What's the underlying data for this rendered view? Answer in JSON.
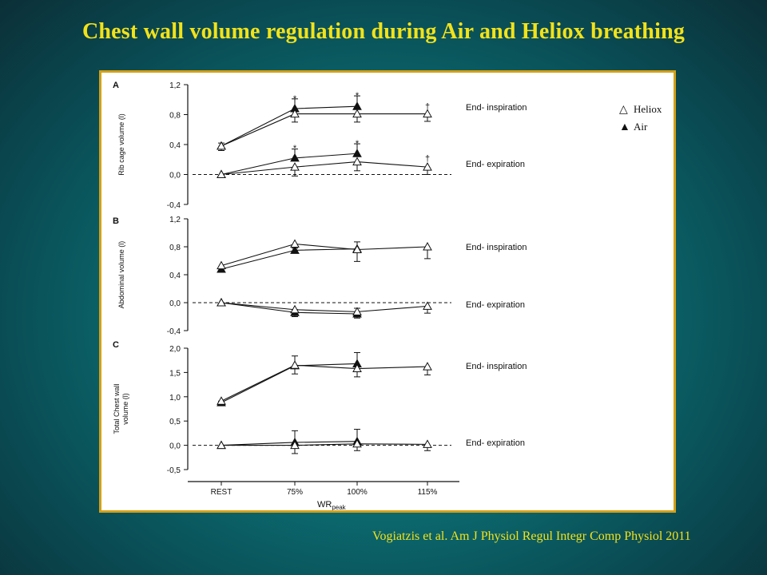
{
  "slide": {
    "title": "Chest wall volume regulation during Air and Heliox breathing",
    "citation": "Vogiatzis et al. Am J Physiol Regul Integr Comp Physiol 2011"
  },
  "legend": [
    {
      "symbol": "△",
      "label": "Heliox"
    },
    {
      "symbol": "▲",
      "label": "Air"
    }
  ],
  "xaxis": {
    "label_main": "WR",
    "label_sub": "peak",
    "ticks": [
      "REST",
      "75%",
      "100%",
      "115%"
    ]
  },
  "colors": {
    "background": "#0b6f73",
    "title": "#f2e21a",
    "frame": "#d4a017",
    "ink": "#111111"
  },
  "chart_data": [
    {
      "type": "line",
      "panel": "A",
      "ylabel": "Rib cage volume (l)",
      "ylim": [
        -0.4,
        1.2
      ],
      "yticks": [
        "1,2",
        "0,8",
        "0,4",
        "0,0",
        "-0,4"
      ],
      "reference_line": 0.0,
      "x": [
        "REST",
        "75%",
        "100%",
        "115%"
      ],
      "annotations": [
        "End- inspiration",
        "End- expiration"
      ],
      "markers": [
        {
          "x": "75%",
          "y": 1.02,
          "text": "*"
        },
        {
          "x": "100%",
          "y": 1.06,
          "text": "*"
        },
        {
          "x": "115%",
          "y": 0.91,
          "text": "†"
        },
        {
          "x": "75%",
          "y": 0.36,
          "text": "*"
        },
        {
          "x": "100%",
          "y": 0.42,
          "text": "*"
        },
        {
          "x": "115%",
          "y": 0.22,
          "text": "†"
        }
      ],
      "series": [
        {
          "name": "Air",
          "phase": "End- inspiration",
          "marker": "filled",
          "values": [
            0.38,
            0.88,
            0.91,
            null
          ],
          "errors": [
            0.04,
            0.13,
            0.14,
            null
          ]
        },
        {
          "name": "Heliox",
          "phase": "End- inspiration",
          "marker": "open",
          "values": [
            0.38,
            0.81,
            0.81,
            0.81
          ],
          "errors": [
            0.06,
            0.11,
            0.11,
            0.1
          ]
        },
        {
          "name": "Air",
          "phase": "End- expiration",
          "marker": "filled",
          "values": [
            0.0,
            0.22,
            0.28,
            null
          ],
          "errors": [
            0.0,
            0.12,
            0.13,
            null
          ]
        },
        {
          "name": "Heliox",
          "phase": "End- expiration",
          "marker": "open",
          "values": [
            0.0,
            0.1,
            0.17,
            0.1
          ],
          "errors": [
            0.0,
            0.12,
            0.12,
            0.1
          ]
        }
      ]
    },
    {
      "type": "line",
      "panel": "B",
      "ylabel": "Abdominal volume (l)",
      "ylim": [
        -0.4,
        1.2
      ],
      "yticks": [
        "1,2",
        "0,8",
        "0,4",
        "0,0",
        "-0,4"
      ],
      "reference_line": 0.0,
      "x": [
        "REST",
        "75%",
        "100%",
        "115%"
      ],
      "annotations": [
        "End- inspiration",
        "End- expiration"
      ],
      "markers": [],
      "series": [
        {
          "name": "Air",
          "phase": "End- inspiration",
          "marker": "filled",
          "values": [
            0.48,
            0.75,
            0.77,
            null
          ],
          "errors": [
            0.03,
            0.06,
            0.1,
            null
          ]
        },
        {
          "name": "Heliox",
          "phase": "End- inspiration",
          "marker": "open",
          "values": [
            0.53,
            0.84,
            0.76,
            0.8
          ],
          "errors": [
            0.04,
            0.06,
            0.17,
            0.17
          ]
        },
        {
          "name": "Air",
          "phase": "End- expiration",
          "marker": "filled",
          "values": [
            0.0,
            -0.14,
            -0.16,
            null
          ],
          "errors": [
            0.0,
            0.04,
            0.08,
            null
          ]
        },
        {
          "name": "Heliox",
          "phase": "End- expiration",
          "marker": "open",
          "values": [
            0.0,
            -0.1,
            -0.13,
            -0.05
          ],
          "errors": [
            0.0,
            0.1,
            0.09,
            0.1
          ]
        }
      ]
    },
    {
      "type": "line",
      "panel": "C",
      "ylabel": "Total Chest wall volume (l)",
      "ylabel_lines": [
        "Total Chest wall",
        "volume (l)"
      ],
      "ylim": [
        -0.5,
        2.0
      ],
      "yticks": [
        "2,0",
        "1,5",
        "1,0",
        "0,5",
        "0,0",
        "-0,5"
      ],
      "reference_line": 0.0,
      "x": [
        "REST",
        "75%",
        "100%",
        "115%"
      ],
      "annotations": [
        "End- inspiration",
        "End- expiration"
      ],
      "markers": [],
      "series": [
        {
          "name": "Air",
          "phase": "End- inspiration",
          "marker": "filled",
          "values": [
            0.88,
            1.64,
            1.68,
            null
          ],
          "errors": [
            0.03,
            0.2,
            0.23,
            null
          ]
        },
        {
          "name": "Heliox",
          "phase": "End- inspiration",
          "marker": "open",
          "values": [
            0.91,
            1.65,
            1.58,
            1.62
          ],
          "errors": [
            0.06,
            0.18,
            0.17,
            0.17
          ]
        },
        {
          "name": "Air",
          "phase": "End- expiration",
          "marker": "filled",
          "values": [
            0.0,
            0.06,
            0.08,
            null
          ],
          "errors": [
            0.0,
            0.24,
            0.25,
            null
          ]
        },
        {
          "name": "Heliox",
          "phase": "End- expiration",
          "marker": "open",
          "values": [
            0.0,
            0.0,
            0.03,
            0.02
          ],
          "errors": [
            0.0,
            0.17,
            0.14,
            0.13
          ]
        }
      ]
    }
  ]
}
